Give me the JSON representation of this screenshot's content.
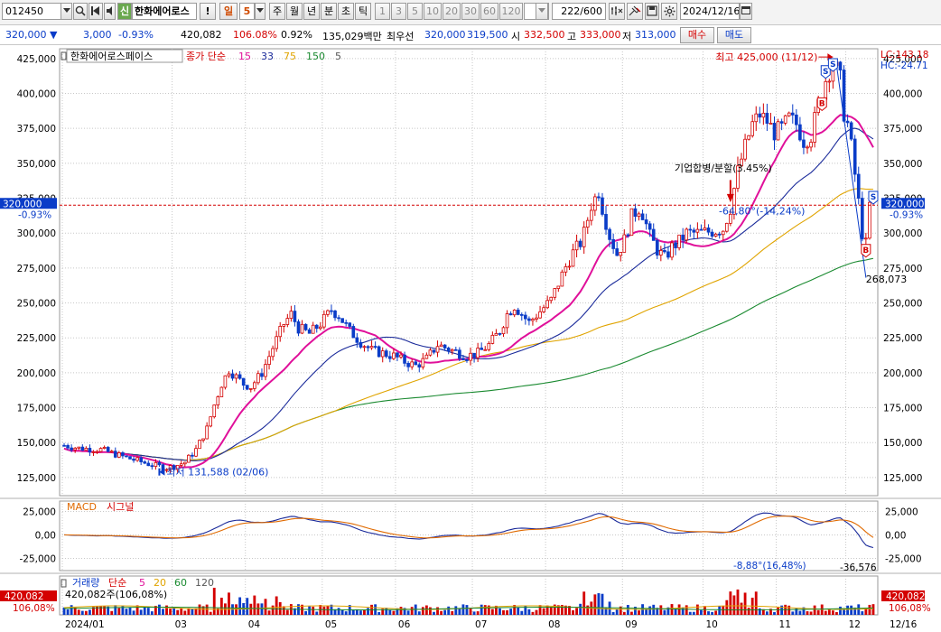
{
  "toolbar": {
    "code": "012450",
    "code_flag": "신",
    "name": "한화에어로스",
    "alert": "!",
    "period_day": "일",
    "period_num": "5",
    "tabs": [
      "주",
      "월",
      "년",
      "분",
      "초",
      "틱"
    ],
    "ticks": [
      "1",
      "3",
      "5",
      "10",
      "20",
      "30",
      "60",
      "120"
    ],
    "count": "222",
    "count_total": "/600",
    "date": "2024/12/16"
  },
  "quote": {
    "price": "320,000",
    "arrow": "▼",
    "change": "3,000",
    "change_pct": "-0.93%",
    "volume": "420,082",
    "volume_ratio": "106.08%",
    "turnover_pct": "0.92%",
    "amount": "135,029백만",
    "ask_label": "최우선",
    "ask": "320,000",
    "bid": "319,500",
    "open_label": "시",
    "open": "332,500",
    "high_label": "고",
    "high": "333,000",
    "low_label": "저",
    "low": "313,000",
    "buy_btn": "매수",
    "sell_btn": "매도"
  },
  "chart_data": {
    "type": "candlestick",
    "legend": {
      "name": "한화에어로스페이스",
      "series": "종가 단순",
      "ma": [
        {
          "label": "15",
          "color": "#e0109a"
        },
        {
          "label": "33",
          "color": "#1a2a9a"
        },
        {
          "label": "75",
          "color": "#e0a400"
        },
        {
          "label": "150",
          "color": "#1a8a30"
        },
        {
          "label": "5",
          "color": "#555555"
        }
      ]
    },
    "lc_label": "LC:143.18",
    "hc_label": "HC:-24.71",
    "y_ticks": [
      "425,000",
      "400,000",
      "375,000",
      "350,000",
      "325,000",
      "300,000",
      "275,000",
      "250,000",
      "225,000",
      "200,000",
      "175,000",
      "150,000",
      "125,000"
    ],
    "y_tick_values": [
      425000,
      400000,
      375000,
      350000,
      325000,
      300000,
      275000,
      250000,
      225000,
      200000,
      175000,
      150000,
      125000
    ],
    "ylim": [
      112000,
      432000
    ],
    "current_price_label": "320,000",
    "current_pct_label": "-0.93%",
    "annotations": {
      "high": "최고 425,000 (11/12)",
      "low": "최저 131,588 (02/06)",
      "event": "기업합병/분할(3.45%)",
      "decline": "-64,80°(-14,24%)",
      "recent_low": "268,073",
      "flag_b": "B",
      "flag_s": "S"
    },
    "price_path": [
      [
        0,
        148000
      ],
      [
        4,
        146000
      ],
      [
        10,
        145000
      ],
      [
        16,
        140000
      ],
      [
        20,
        137000
      ],
      [
        24,
        134000
      ],
      [
        28,
        132000
      ],
      [
        30,
        133000
      ],
      [
        33,
        136000
      ],
      [
        36,
        145000
      ],
      [
        39,
        160000
      ],
      [
        41,
        177000
      ],
      [
        43,
        192000
      ],
      [
        45,
        202000
      ],
      [
        47,
        197000
      ],
      [
        49,
        192000
      ],
      [
        51,
        190000
      ],
      [
        54,
        200000
      ],
      [
        57,
        218000
      ],
      [
        60,
        235000
      ],
      [
        62,
        242000
      ],
      [
        64,
        232000
      ],
      [
        67,
        228000
      ],
      [
        70,
        235000
      ],
      [
        73,
        245000
      ],
      [
        75,
        241000
      ],
      [
        78,
        230000
      ],
      [
        81,
        222000
      ],
      [
        84,
        216000
      ],
      [
        87,
        214000
      ],
      [
        90,
        212000
      ],
      [
        93,
        208000
      ],
      [
        96,
        205000
      ],
      [
        99,
        210000
      ],
      [
        102,
        220000
      ],
      [
        104,
        218000
      ],
      [
        107,
        215000
      ],
      [
        110,
        212000
      ],
      [
        113,
        214000
      ],
      [
        116,
        220000
      ],
      [
        119,
        230000
      ],
      [
        121,
        242000
      ],
      [
        123,
        248000
      ],
      [
        125,
        242000
      ],
      [
        127,
        236000
      ],
      [
        130,
        244000
      ],
      [
        133,
        252000
      ],
      [
        135,
        264000
      ],
      [
        137,
        276000
      ],
      [
        139,
        286000
      ],
      [
        141,
        293000
      ],
      [
        142,
        300000
      ],
      [
        144,
        320000
      ],
      [
        146,
        330000
      ],
      [
        147,
        318000
      ],
      [
        149,
        298000
      ],
      [
        151,
        285000
      ],
      [
        153,
        295000
      ],
      [
        155,
        312000
      ],
      [
        157,
        318000
      ],
      [
        158,
        314000
      ],
      [
        160,
        298000
      ],
      [
        162,
        288000
      ],
      [
        164,
        282000
      ],
      [
        166,
        290000
      ],
      [
        168,
        294000
      ],
      [
        170,
        300000
      ],
      [
        173,
        300000
      ],
      [
        176,
        301000
      ],
      [
        178,
        302000
      ],
      [
        180,
        303000
      ],
      [
        182,
        318000
      ],
      [
        183,
        332000
      ],
      [
        184,
        344000
      ],
      [
        186,
        362000
      ],
      [
        188,
        378000
      ],
      [
        190,
        385000
      ],
      [
        192,
        380000
      ],
      [
        194,
        372000
      ],
      [
        196,
        375000
      ],
      [
        198,
        382000
      ],
      [
        200,
        378000
      ],
      [
        202,
        366000
      ],
      [
        204,
        370000
      ],
      [
        206,
        392000
      ],
      [
        208,
        410000
      ],
      [
        210,
        422000
      ],
      [
        211,
        417000
      ],
      [
        212,
        410000
      ],
      [
        213,
        386000
      ],
      [
        214,
        378000
      ],
      [
        215,
        362000
      ],
      [
        216,
        342000
      ],
      [
        217,
        322000
      ],
      [
        218,
        300000
      ],
      [
        219,
        292000
      ],
      [
        220,
        320000
      ],
      [
        221,
        320000
      ]
    ],
    "ma_params": [
      15,
      33,
      75,
      150
    ],
    "x_ticks": [
      "2024/01",
      "03",
      "04",
      "05",
      "06",
      "07",
      "08",
      "09",
      "10",
      "11",
      "12"
    ],
    "x_tick_index": [
      0,
      30,
      50,
      71,
      91,
      112,
      132,
      153,
      175,
      195,
      214
    ],
    "x_end_label": "12/16"
  },
  "macd": {
    "title": "MACD",
    "signal_label": "시그널",
    "y_ticks": [
      "25,000",
      "0,00",
      "-25,000"
    ],
    "y_tick_values": [
      25000,
      0,
      -25000
    ],
    "ylim": [
      -38000,
      36000
    ],
    "annotation": "-8,88°(16,48%)",
    "min_label": "-36,576"
  },
  "volume_panel": {
    "title": "거래량",
    "series": "단순",
    "ma": [
      {
        "label": "5",
        "color": "#e0109a"
      },
      {
        "label": "20",
        "color": "#e0a400"
      },
      {
        "label": "60",
        "color": "#1a8a30"
      },
      {
        "label": "120",
        "color": "#555555"
      }
    ],
    "current": "420,082주(106,08%)",
    "left_value": "420,082",
    "left_pct": "106,08%",
    "right_value": "420,082",
    "right_pct": "106,08%"
  },
  "colors": {
    "up": "#d40000",
    "down": "#0a3cc8",
    "ma15": "#e0109a",
    "ma33": "#1a2a9a",
    "ma75": "#e0a400",
    "ma150": "#1a8a30",
    "ma5": "#555555",
    "macd": "#1a2a9a",
    "signal": "#e06a00"
  },
  "icons": [
    "search-icon",
    "reverse-play-icon",
    "speaker-icon",
    "chevron-down-icon",
    "tool-icon",
    "pin-icon",
    "save-icon",
    "gear-icon",
    "calendar-icon"
  ]
}
